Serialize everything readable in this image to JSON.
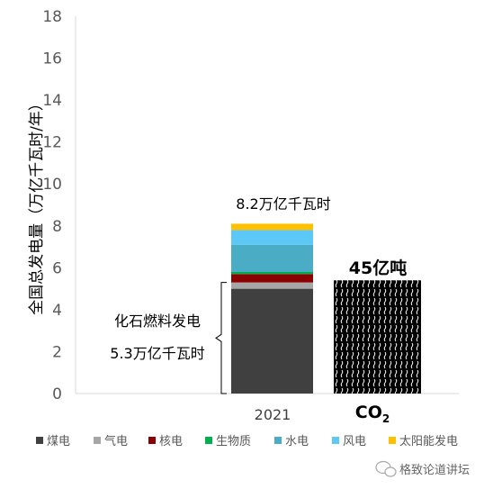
{
  "chart_data": {
    "type": "bar",
    "stacked": true,
    "categories": [
      "2021"
    ],
    "ylabel": "全国总发电量（万亿千瓦时/年）",
    "ylim": [
      0,
      18
    ],
    "yticks": [
      0,
      2,
      4,
      6,
      8,
      10,
      12,
      14,
      16,
      18
    ],
    "grid": false,
    "legend_position": "bottom",
    "series": [
      {
        "name": "煤电",
        "values": [
          5.0
        ],
        "color": "#404040"
      },
      {
        "name": "气电",
        "values": [
          0.3
        ],
        "color": "#a6a6a6"
      },
      {
        "name": "核电",
        "values": [
          0.4
        ],
        "color": "#8b0000"
      },
      {
        "name": "生物质",
        "values": [
          0.1
        ],
        "color": "#00b050"
      },
      {
        "name": "水电",
        "values": [
          1.3
        ],
        "color": "#4bacc6"
      },
      {
        "name": "风电",
        "values": [
          0.7
        ],
        "color": "#5bc8f5"
      },
      {
        "name": "太阳能发电",
        "values": [
          0.3
        ],
        "color": "#ffc000"
      }
    ],
    "total_label": "8.2万亿千瓦时",
    "annotations": {
      "fossil_label_line1": "化石燃料发电",
      "fossil_label_line2": "5.3万亿千瓦时",
      "fossil_value": 5.3
    },
    "co2": {
      "label": "CO",
      "subscript": "2",
      "value_label": "45亿吨",
      "bar_height_value": 5.4
    }
  },
  "watermark": {
    "text": "格致论道讲坛"
  }
}
